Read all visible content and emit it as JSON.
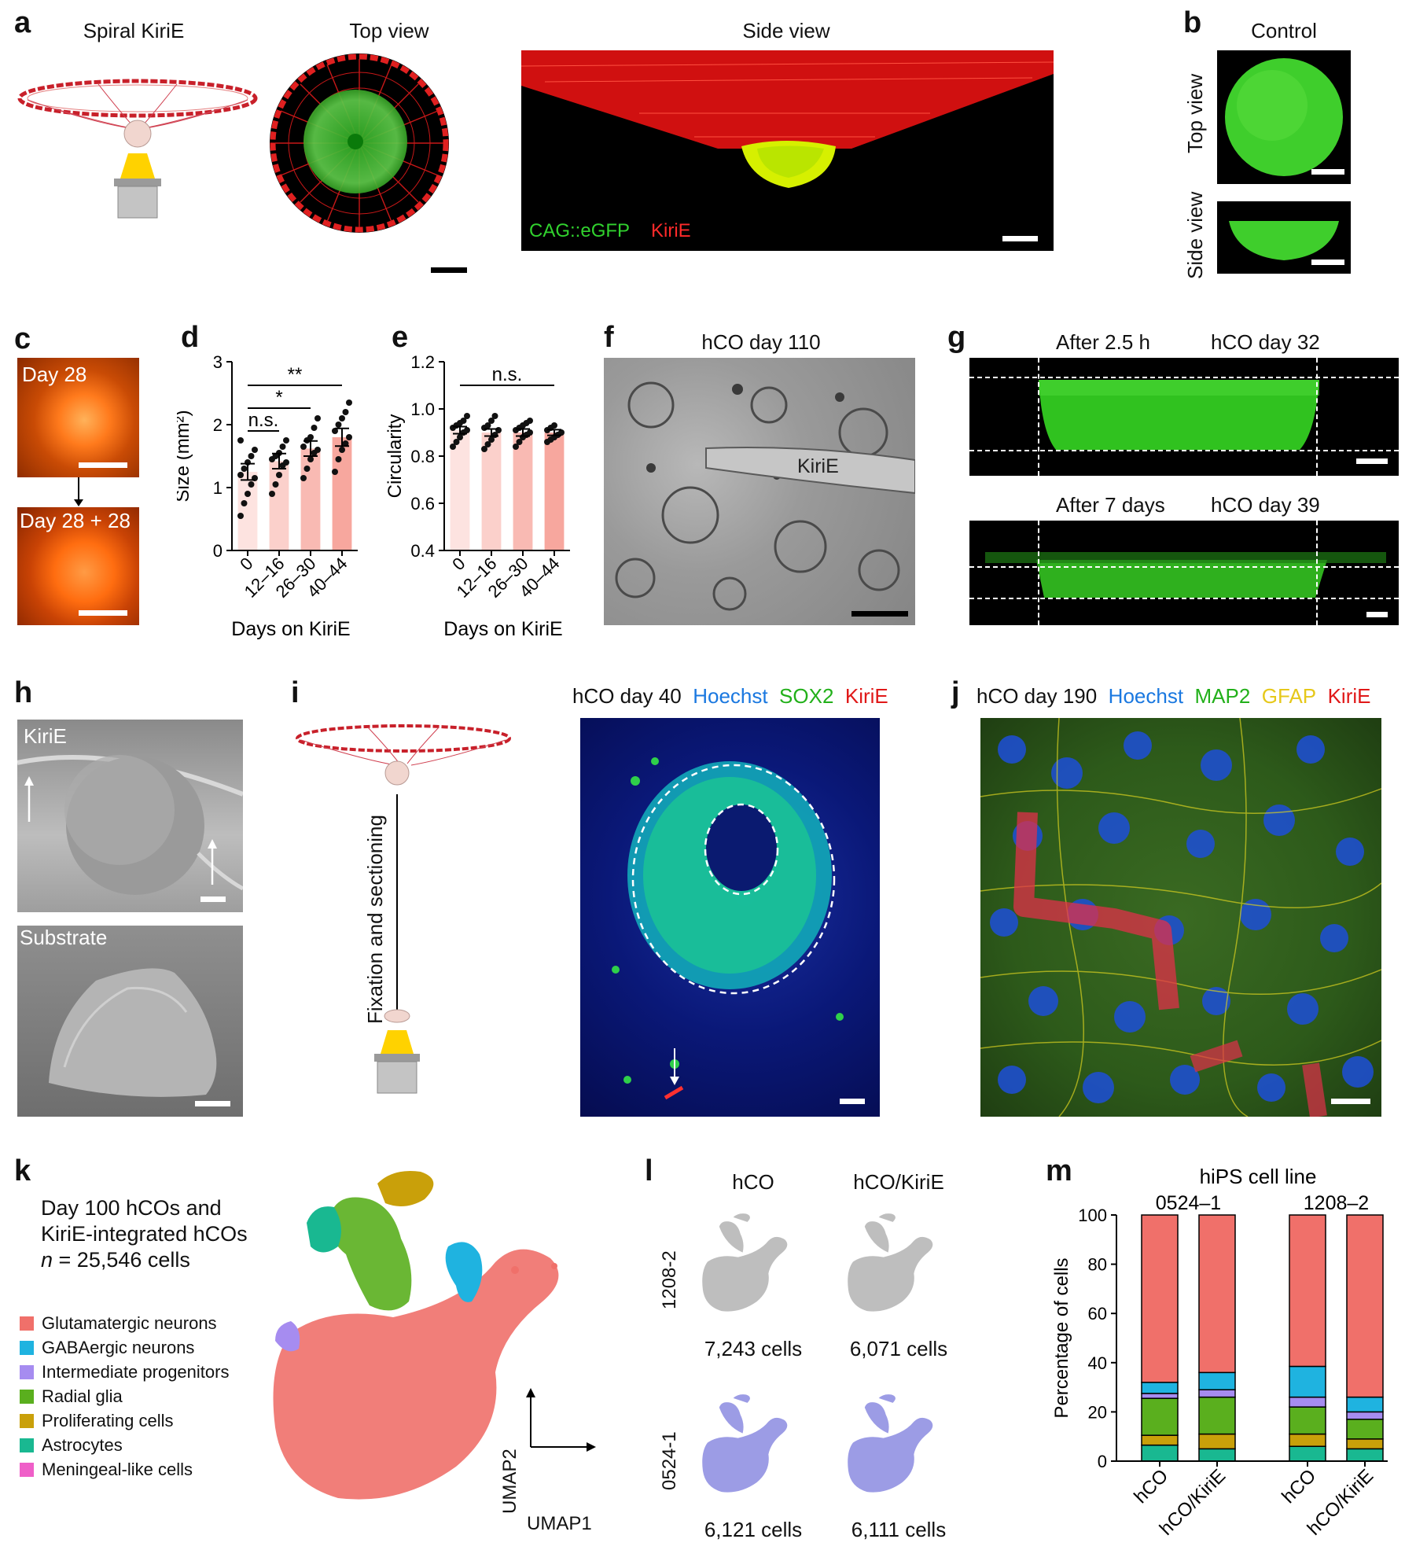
{
  "panels": {
    "a": {
      "label": "a",
      "titles": [
        "Spiral KiriE",
        "Top view",
        "Side view"
      ],
      "legend": {
        "green": "CAG::eGFP",
        "red": "KiriE"
      }
    },
    "b": {
      "label": "b",
      "title": "Control",
      "row_labels": [
        "Top view",
        "Side view"
      ]
    },
    "c": {
      "label": "c",
      "tags": [
        "Day 28",
        "Day 28 + 28"
      ]
    },
    "f": {
      "label": "f",
      "title": "hCO day 110",
      "annotation": "KiriE"
    },
    "g": {
      "label": "g",
      "rows": [
        {
          "time": "After 2.5 h",
          "age": "hCO day 32"
        },
        {
          "time": "After 7 days",
          "age": "hCO day 39"
        }
      ]
    },
    "h": {
      "label": "h",
      "tags": [
        "KiriE",
        "Substrate"
      ]
    },
    "i": {
      "label": "i",
      "step": "Fixation and sectioning",
      "title": {
        "prefix": "hCO day 40",
        "c1": "Hoechst",
        "c2": "SOX2",
        "c3": "KiriE"
      }
    },
    "j": {
      "label": "j",
      "title": {
        "prefix": "hCO day 190",
        "c1": "Hoechst",
        "c2": "MAP2",
        "c3": "GFAP",
        "c4": "KiriE"
      }
    },
    "k": {
      "label": "k",
      "desc_line1": "Day 100 hCOs and",
      "desc_line2": "KiriE-integrated hCOs",
      "n_prefix": "n",
      "n_value": " = 25,546 cells",
      "legend": [
        {
          "label": "Glutamatergic neurons",
          "color": "#f0706a"
        },
        {
          "label": "GABAergic neurons",
          "color": "#1fb3e0"
        },
        {
          "label": "Intermediate progenitors",
          "color": "#a68cf0"
        },
        {
          "label": "Radial glia",
          "color": "#5aaf1e"
        },
        {
          "label": "Proliferating cells",
          "color": "#c9a00a"
        },
        {
          "label": "Astrocytes",
          "color": "#19b891"
        },
        {
          "label": "Meningeal-like cells",
          "color": "#ef5fc8"
        }
      ],
      "axes": {
        "x": "UMAP1",
        "y": "UMAP2"
      }
    },
    "l": {
      "label": "l",
      "cols": [
        "hCO",
        "hCO/KiriE"
      ],
      "rows": [
        "1208-2",
        "0524-1"
      ],
      "counts": [
        "7,243 cells",
        "6,071 cells",
        "6,121 cells",
        "6,111 cells"
      ]
    }
  },
  "chart_data": [
    {
      "panel": "d",
      "type": "bar",
      "xlabel": "Days on KiriE",
      "ylabel": "Size (mm²)",
      "categories": [
        "0",
        "12–16",
        "26–30",
        "40–44"
      ],
      "values": [
        1.25,
        1.42,
        1.62,
        1.8
      ],
      "errors": [
        0.13,
        0.12,
        0.12,
        0.14
      ],
      "ylim": [
        0,
        3
      ],
      "yticks": [
        "0",
        "1",
        "2",
        "3"
      ],
      "colors": [
        "#fde3e0",
        "#fbd0cb",
        "#f9bab3",
        "#f7a79e"
      ],
      "points": [
        [
          0.55,
          0.75,
          0.9,
          1.05,
          1.15,
          1.2,
          1.3,
          1.4,
          1.5,
          1.6,
          1.75
        ],
        [
          0.9,
          1.05,
          1.2,
          1.35,
          1.4,
          1.45,
          1.5,
          1.55,
          1.65,
          1.75
        ],
        [
          1.15,
          1.3,
          1.45,
          1.55,
          1.6,
          1.65,
          1.75,
          1.8,
          1.95,
          2.1
        ],
        [
          1.25,
          1.45,
          1.6,
          1.7,
          1.8,
          1.9,
          2.0,
          2.1,
          2.2,
          2.35
        ]
      ],
      "significance": [
        {
          "from": 0,
          "to": 1,
          "label": "n.s."
        },
        {
          "from": 0,
          "to": 2,
          "label": "*"
        },
        {
          "from": 0,
          "to": 3,
          "label": "**"
        }
      ]
    },
    {
      "panel": "e",
      "type": "bar",
      "xlabel": "Days on KiriE",
      "ylabel": "Circularity",
      "categories": [
        "0",
        "12–16",
        "26–30",
        "40–44"
      ],
      "values": [
        0.91,
        0.9,
        0.9,
        0.9
      ],
      "errors": [
        0.015,
        0.015,
        0.015,
        0.012
      ],
      "ylim": [
        0.4,
        1.2
      ],
      "yticks": [
        "0.4",
        "0.6",
        "0.8",
        "1.0",
        "1.2"
      ],
      "colors": [
        "#fde3e0",
        "#fbd0cb",
        "#f9bab3",
        "#f7a79e"
      ],
      "points": [
        [
          0.84,
          0.86,
          0.88,
          0.9,
          0.91,
          0.92,
          0.93,
          0.94,
          0.95,
          0.97
        ],
        [
          0.83,
          0.85,
          0.87,
          0.89,
          0.91,
          0.92,
          0.93,
          0.95,
          0.97
        ],
        [
          0.84,
          0.86,
          0.88,
          0.89,
          0.9,
          0.91,
          0.92,
          0.93,
          0.94,
          0.95
        ],
        [
          0.86,
          0.87,
          0.88,
          0.89,
          0.9,
          0.91,
          0.92,
          0.93
        ]
      ],
      "significance": [
        {
          "from": 0,
          "to": 3,
          "label": "n.s."
        }
      ]
    },
    {
      "panel": "m",
      "type": "bar",
      "stacked": true,
      "title": "hiPS cell line",
      "groups": [
        "0524–1",
        "1208–2"
      ],
      "categories": [
        "hCO",
        "hCO/KiriE",
        "hCO",
        "hCO/KiriE"
      ],
      "ylabel": "Percentage of cells",
      "ylim": [
        0,
        100
      ],
      "yticks": [
        "0",
        "20",
        "40",
        "60",
        "80",
        "100"
      ],
      "series": [
        {
          "name": "Astrocytes",
          "color": "#19b891",
          "values": [
            6.5,
            5,
            6,
            5
          ]
        },
        {
          "name": "Proliferating cells",
          "color": "#c9a00a",
          "values": [
            4,
            6,
            5,
            4
          ]
        },
        {
          "name": "Radial glia",
          "color": "#5aaf1e",
          "values": [
            15,
            15,
            11,
            8
          ]
        },
        {
          "name": "Intermediate progenitors",
          "color": "#a68cf0",
          "values": [
            2,
            3,
            4,
            3
          ]
        },
        {
          "name": "GABAergic neurons",
          "color": "#1fb3e0",
          "values": [
            4.5,
            7,
            12.5,
            6
          ]
        },
        {
          "name": "Glutamatergic neurons",
          "color": "#f0706a",
          "values": [
            68,
            64,
            61.5,
            74
          ]
        }
      ]
    }
  ]
}
